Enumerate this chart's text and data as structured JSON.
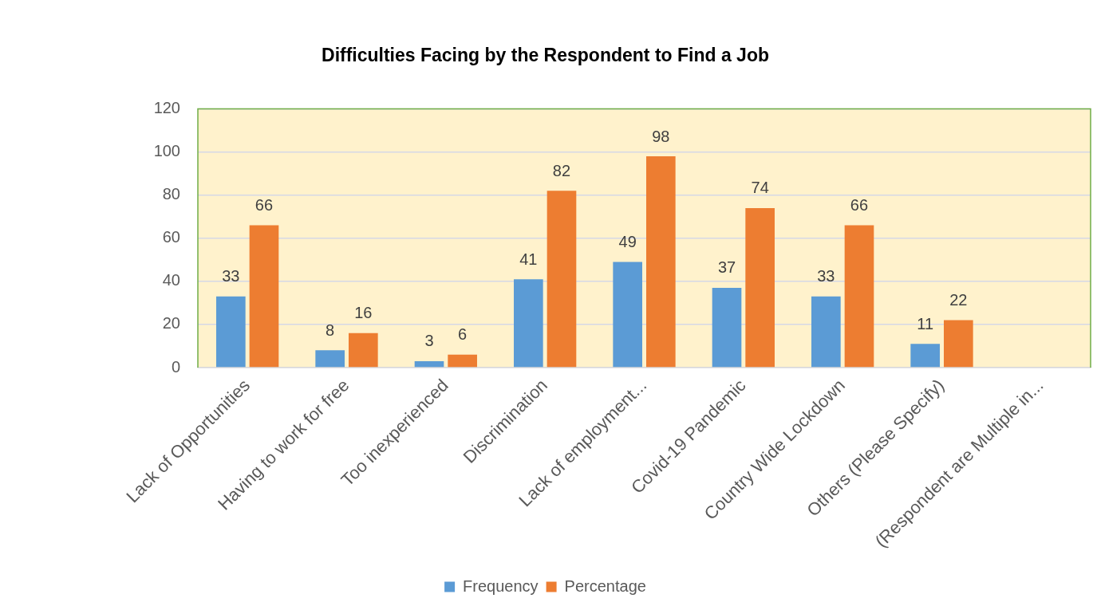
{
  "chart_data": {
    "type": "bar",
    "title": "Difficulties Facing by the Respondent to Find a Job",
    "categories": [
      "Lack of Opportunities",
      "Having to work for free",
      "Too inexperienced",
      "Discrimination",
      "Lack of employment...",
      "Covid-19 Pandemic",
      "Country Wide Lockdown",
      "Others (Please Specify)",
      "(Respondent are Multiple in..."
    ],
    "series": [
      {
        "name": "Frequency",
        "color": "#5b9bd5",
        "values": [
          33,
          8,
          3,
          41,
          49,
          37,
          33,
          11,
          null
        ]
      },
      {
        "name": "Percentage",
        "color": "#ed7d31",
        "values": [
          66,
          16,
          6,
          82,
          98,
          74,
          66,
          22,
          null
        ]
      }
    ],
    "ylim": [
      0,
      120
    ],
    "yticks": [
      0,
      20,
      40,
      60,
      80,
      100,
      120
    ],
    "grid": "y",
    "legend": "bottom",
    "data_labels": true
  }
}
